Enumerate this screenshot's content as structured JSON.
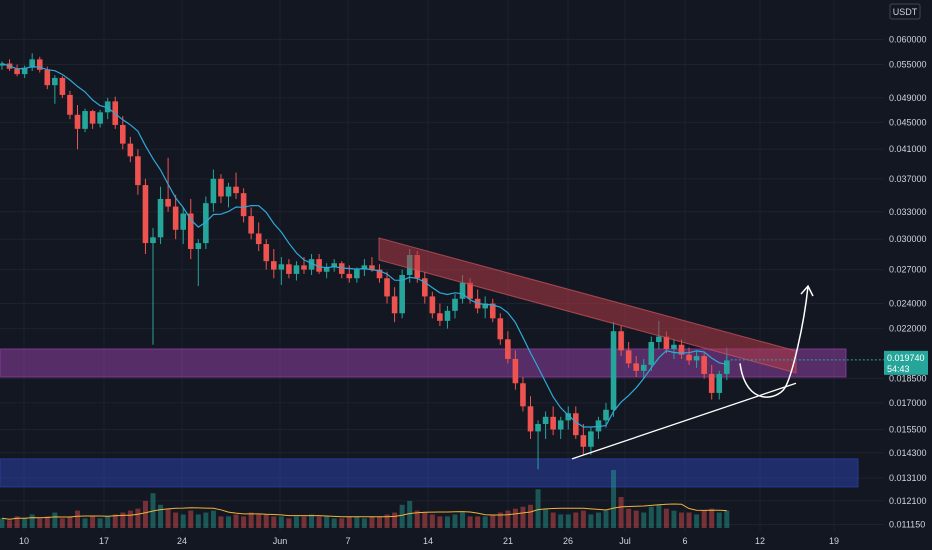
{
  "chart_data": {
    "type": "candlestick",
    "quote_unit": "USDT",
    "current_price": "0.019740",
    "countdown": "54:43",
    "yticks": [
      "0.060000",
      "0.055000",
      "0.049000",
      "0.045000",
      "0.041000",
      "0.037000",
      "0.033000",
      "0.030000",
      "0.027000",
      "0.024000",
      "0.022000",
      "0.018500",
      "0.017000",
      "0.015500",
      "0.014300",
      "0.013100",
      "0.012100",
      "0.011150"
    ],
    "xticks": [
      "10",
      "17",
      "24",
      "Jun",
      "7",
      "14",
      "21",
      "26",
      "Jul",
      "6",
      "12",
      "19"
    ],
    "log_scale": true,
    "ylim": [
      0.0109,
      0.066
    ],
    "zones": [
      {
        "name": "resistance-zone",
        "low": 0.0186,
        "high": 0.0205,
        "color": "#8e3fa0"
      },
      {
        "name": "support-zone",
        "low": 0.0127,
        "high": 0.014,
        "color": "#2a3fa5"
      }
    ],
    "trendlines": [
      {
        "name": "descending-resistance-band",
        "from": [
          "Jun 8",
          0.029
        ],
        "to": [
          "Jul 15",
          0.0196
        ],
        "color": "#b03a46"
      },
      {
        "name": "ascending-support",
        "from": [
          "Jun 26",
          0.014
        ],
        "to": [
          "Jul 15",
          0.0182
        ],
        "color": "#ffffff"
      }
    ],
    "projection": {
      "color": "#ffffff",
      "target": 0.0255
    },
    "ma_color": "#2ea9d8",
    "up_color": "#26a69a",
    "down_color": "#ef5350",
    "candles": [
      [
        0.0548,
        0.0556,
        0.054,
        0.0552
      ],
      [
        0.0552,
        0.056,
        0.0538,
        0.0542
      ],
      [
        0.0542,
        0.055,
        0.0528,
        0.0532
      ],
      [
        0.0532,
        0.0548,
        0.0525,
        0.0544
      ],
      [
        0.0544,
        0.0572,
        0.0538,
        0.056
      ],
      [
        0.056,
        0.0565,
        0.0535,
        0.054
      ],
      [
        0.054,
        0.0546,
        0.0505,
        0.0512
      ],
      [
        0.0512,
        0.053,
        0.048,
        0.0525
      ],
      [
        0.0525,
        0.0528,
        0.049,
        0.0495
      ],
      [
        0.0495,
        0.0502,
        0.0455,
        0.0462
      ],
      [
        0.0462,
        0.0478,
        0.041,
        0.044
      ],
      [
        0.044,
        0.0472,
        0.0435,
        0.0468
      ],
      [
        0.0468,
        0.047,
        0.044,
        0.0448
      ],
      [
        0.0448,
        0.047,
        0.0442,
        0.0466
      ],
      [
        0.0466,
        0.049,
        0.0455,
        0.0484
      ],
      [
        0.0484,
        0.0492,
        0.044,
        0.0446
      ],
      [
        0.0446,
        0.046,
        0.041,
        0.0418
      ],
      [
        0.0418,
        0.0428,
        0.0392,
        0.04
      ],
      [
        0.04,
        0.041,
        0.035,
        0.0362
      ],
      [
        0.0362,
        0.037,
        0.0285,
        0.0296
      ],
      [
        0.0296,
        0.0312,
        0.0208,
        0.0302
      ],
      [
        0.0302,
        0.036,
        0.0295,
        0.0345
      ],
      [
        0.0345,
        0.0398,
        0.033,
        0.0336
      ],
      [
        0.0336,
        0.035,
        0.03,
        0.031
      ],
      [
        0.031,
        0.0335,
        0.0295,
        0.0328
      ],
      [
        0.0328,
        0.0345,
        0.028,
        0.029
      ],
      [
        0.029,
        0.03,
        0.0255,
        0.0296
      ],
      [
        0.0296,
        0.0348,
        0.029,
        0.034
      ],
      [
        0.034,
        0.0382,
        0.033,
        0.037
      ],
      [
        0.037,
        0.0376,
        0.034,
        0.0348
      ],
      [
        0.0348,
        0.0365,
        0.0335,
        0.036
      ],
      [
        0.036,
        0.0378,
        0.0345,
        0.0352
      ],
      [
        0.0352,
        0.0358,
        0.0318,
        0.0325
      ],
      [
        0.0325,
        0.0335,
        0.03,
        0.0306
      ],
      [
        0.0306,
        0.0318,
        0.0288,
        0.0295
      ],
      [
        0.0295,
        0.03,
        0.027,
        0.0278
      ],
      [
        0.0278,
        0.029,
        0.0262,
        0.027
      ],
      [
        0.027,
        0.0282,
        0.0256,
        0.0275
      ],
      [
        0.0275,
        0.028,
        0.0262,
        0.0266
      ],
      [
        0.0266,
        0.0278,
        0.026,
        0.0274
      ],
      [
        0.0274,
        0.0282,
        0.0266,
        0.027
      ],
      [
        0.027,
        0.0285,
        0.0265,
        0.028
      ],
      [
        0.028,
        0.0285,
        0.0266,
        0.0268
      ],
      [
        0.0268,
        0.0276,
        0.0262,
        0.0272
      ],
      [
        0.0272,
        0.028,
        0.0268,
        0.0276
      ],
      [
        0.0276,
        0.0278,
        0.0262,
        0.0266
      ],
      [
        0.0266,
        0.0274,
        0.0258,
        0.0262
      ],
      [
        0.0262,
        0.0272,
        0.0258,
        0.027
      ],
      [
        0.027,
        0.028,
        0.0264,
        0.0274
      ],
      [
        0.0274,
        0.0282,
        0.0268,
        0.027
      ],
      [
        0.027,
        0.0275,
        0.0258,
        0.0262
      ],
      [
        0.0262,
        0.0268,
        0.024,
        0.0246
      ],
      [
        0.0246,
        0.0254,
        0.0225,
        0.0232
      ],
      [
        0.0232,
        0.027,
        0.0228,
        0.0265
      ],
      [
        0.0265,
        0.029,
        0.0258,
        0.0284
      ],
      [
        0.0284,
        0.0288,
        0.0258,
        0.0262
      ],
      [
        0.0262,
        0.0268,
        0.024,
        0.0246
      ],
      [
        0.0246,
        0.025,
        0.0228,
        0.0232
      ],
      [
        0.0232,
        0.024,
        0.0222,
        0.0226
      ],
      [
        0.0226,
        0.0238,
        0.022,
        0.0234
      ],
      [
        0.0234,
        0.0248,
        0.0228,
        0.0244
      ],
      [
        0.0244,
        0.0265,
        0.024,
        0.0258
      ],
      [
        0.0258,
        0.0262,
        0.024,
        0.0244
      ],
      [
        0.0244,
        0.0252,
        0.0232,
        0.0236
      ],
      [
        0.0236,
        0.0246,
        0.0228,
        0.024
      ],
      [
        0.024,
        0.0244,
        0.0225,
        0.0228
      ],
      [
        0.0228,
        0.0232,
        0.0208,
        0.0212
      ],
      [
        0.0212,
        0.0218,
        0.0195,
        0.0198
      ],
      [
        0.0198,
        0.0204,
        0.0178,
        0.0182
      ],
      [
        0.0182,
        0.0186,
        0.0165,
        0.0168
      ],
      [
        0.0168,
        0.0174,
        0.015,
        0.0154
      ],
      [
        0.0154,
        0.016,
        0.0135,
        0.0158
      ],
      [
        0.0158,
        0.0165,
        0.015,
        0.0162
      ],
      [
        0.0162,
        0.0168,
        0.0152,
        0.0155
      ],
      [
        0.0155,
        0.0162,
        0.015,
        0.016
      ],
      [
        0.016,
        0.0168,
        0.0155,
        0.0164
      ],
      [
        0.0164,
        0.0168,
        0.015,
        0.0152
      ],
      [
        0.0152,
        0.0158,
        0.0142,
        0.0146
      ],
      [
        0.0146,
        0.0156,
        0.0142,
        0.0154
      ],
      [
        0.0154,
        0.0162,
        0.015,
        0.016
      ],
      [
        0.016,
        0.017,
        0.0156,
        0.0166
      ],
      [
        0.0166,
        0.0225,
        0.0162,
        0.0218
      ],
      [
        0.0218,
        0.0222,
        0.02,
        0.0204
      ],
      [
        0.0204,
        0.021,
        0.0192,
        0.0195
      ],
      [
        0.0195,
        0.02,
        0.0186,
        0.019
      ],
      [
        0.019,
        0.0198,
        0.0185,
        0.0194
      ],
      [
        0.0194,
        0.0214,
        0.019,
        0.021
      ],
      [
        0.021,
        0.0226,
        0.0205,
        0.0214
      ],
      [
        0.0214,
        0.0218,
        0.0202,
        0.0205
      ],
      [
        0.0205,
        0.0212,
        0.0198,
        0.0208
      ],
      [
        0.0208,
        0.0212,
        0.0198,
        0.0201
      ],
      [
        0.0201,
        0.0206,
        0.0194,
        0.0197
      ],
      [
        0.0197,
        0.0204,
        0.0192,
        0.02
      ],
      [
        0.02,
        0.0202,
        0.0185,
        0.0188
      ],
      [
        0.0188,
        0.0194,
        0.0172,
        0.0176
      ],
      [
        0.0176,
        0.019,
        0.0172,
        0.0188
      ],
      [
        0.0188,
        0.0206,
        0.0184,
        0.0197
      ]
    ],
    "volumes": [
      5,
      4,
      6,
      5,
      7,
      5,
      6,
      8,
      5,
      6,
      9,
      5,
      6,
      5,
      6,
      7,
      8,
      9,
      10,
      14,
      18,
      12,
      10,
      8,
      7,
      9,
      7,
      8,
      9,
      6,
      6,
      7,
      6,
      8,
      7,
      7,
      6,
      6,
      5,
      6,
      6,
      7,
      6,
      6,
      5,
      5,
      6,
      6,
      5,
      6,
      6,
      7,
      8,
      12,
      14,
      9,
      8,
      7,
      6,
      6,
      7,
      8,
      6,
      6,
      6,
      7,
      8,
      9,
      10,
      11,
      12,
      20,
      10,
      8,
      7,
      7,
      8,
      9,
      7,
      8,
      9,
      30,
      16,
      10,
      9,
      8,
      11,
      12,
      10,
      9,
      8,
      8,
      7,
      9,
      10,
      8,
      9
    ]
  }
}
